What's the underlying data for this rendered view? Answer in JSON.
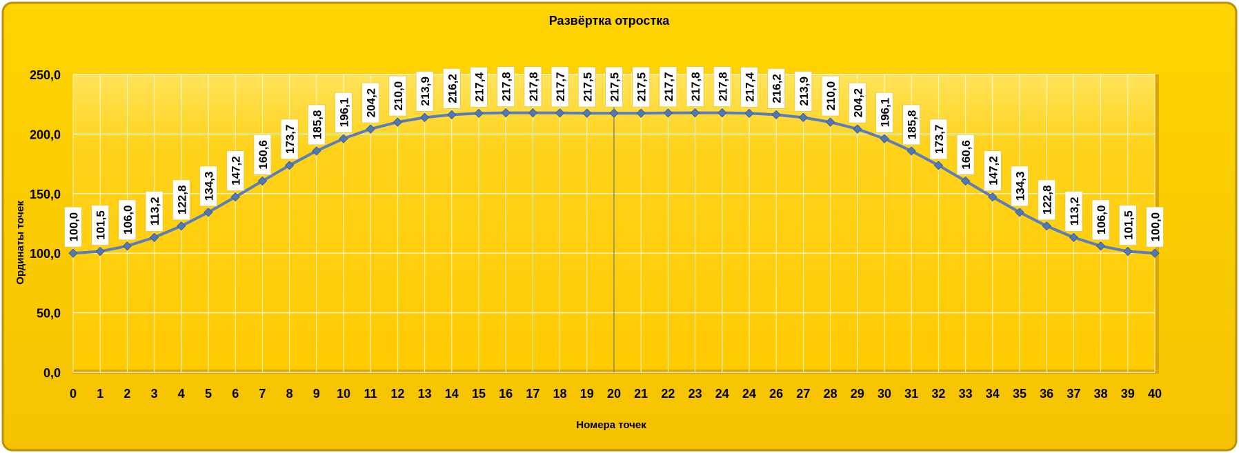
{
  "chart_data": {
    "type": "line",
    "title": "Развёртка отростка",
    "xlabel": "Номера точек",
    "ylabel": "Ординаты точек",
    "ylim": [
      0,
      250
    ],
    "yticks": [
      "0,0",
      "50,0",
      "100,0",
      "150,0",
      "200,0",
      "250,0"
    ],
    "categories": [
      "0",
      "1",
      "2",
      "3",
      "4",
      "5",
      "6",
      "7",
      "8",
      "9",
      "10",
      "11",
      "12",
      "13",
      "14",
      "15",
      "16",
      "17",
      "18",
      "19",
      "20",
      "21",
      "22",
      "23",
      "24",
      "24",
      "26",
      "27",
      "28",
      "29",
      "30",
      "31",
      "32",
      "33",
      "34",
      "35",
      "36",
      "37",
      "38",
      "39",
      "40"
    ],
    "values": [
      100.0,
      101.5,
      106.0,
      113.2,
      122.8,
      134.3,
      147.2,
      160.6,
      173.7,
      185.8,
      196.1,
      204.2,
      210.0,
      213.9,
      216.2,
      217.4,
      217.8,
      217.8,
      217.7,
      217.5,
      217.5,
      217.5,
      217.7,
      217.8,
      217.8,
      217.4,
      216.2,
      213.9,
      210.0,
      204.2,
      196.1,
      185.8,
      173.7,
      160.6,
      147.2,
      134.3,
      122.8,
      113.2,
      106.0,
      101.5,
      100.0
    ],
    "data_labels": [
      "100,0",
      "101,5",
      "106,0",
      "113,2",
      "122,8",
      "134,3",
      "147,2",
      "160,6",
      "173,7",
      "185,8",
      "196,1",
      "204,2",
      "210,0",
      "213,9",
      "216,2",
      "217,4",
      "217,8",
      "217,8",
      "217,7",
      "217,5",
      "217,5",
      "217,5",
      "217,7",
      "217,8",
      "217,8",
      "217,4",
      "216,2",
      "213,9",
      "210,0",
      "204,2",
      "196,1",
      "185,8",
      "173,7",
      "160,6",
      "147,2",
      "134,3",
      "122,8",
      "113,2",
      "106,0",
      "101,5",
      "100,0"
    ],
    "grid": true,
    "legend": "none",
    "colors": {
      "background": "#FFCC00",
      "plot": "#FFD21A",
      "line": "#5B7DB8",
      "marker": "#4F78B4",
      "grid": "#FFFFFF",
      "frame": "#C9A100"
    }
  }
}
